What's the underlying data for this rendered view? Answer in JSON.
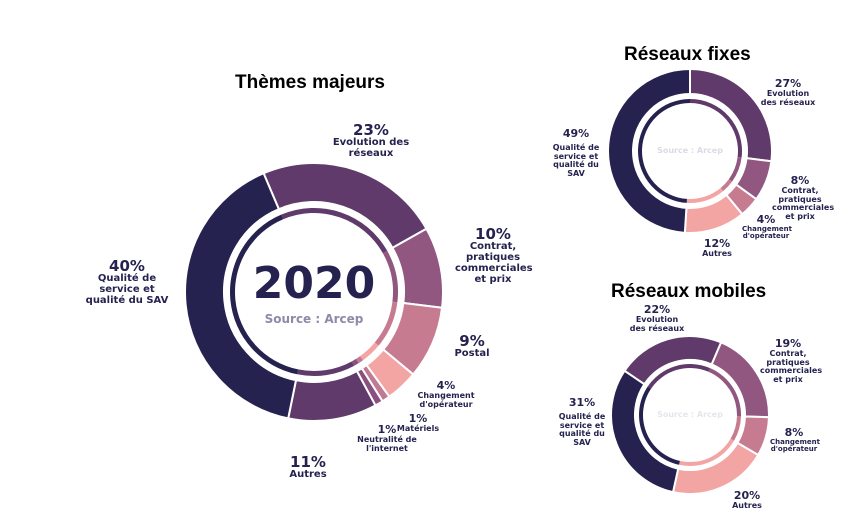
{
  "chart_data": [
    {
      "type": "pie",
      "title": "Thèmes majeurs",
      "center_title": "2020",
      "source": "Source : Arcep",
      "slices": [
        {
          "label": "Evolution des réseaux",
          "value": 23,
          "color": "#5f3a6a"
        },
        {
          "label": "Contrat, pratiques commerciales et prix",
          "value": 10,
          "color": "#915780"
        },
        {
          "label": "Postal",
          "value": 9,
          "color": "#c77b91"
        },
        {
          "label": "Changement d'opérateur",
          "value": 4,
          "color": "#f3a5a3"
        },
        {
          "label": "Matériels",
          "value": 1,
          "color": "#c07a94"
        },
        {
          "label": "Neutralité de l'internet",
          "value": 1,
          "color": "#8a5080"
        },
        {
          "label": "Autres",
          "value": 11,
          "color": "#5f3a6a"
        },
        {
          "label": "Qualité de service et qualité du SAV",
          "value": 40,
          "color": "#25224f"
        }
      ]
    },
    {
      "type": "pie",
      "title": "Réseaux fixes",
      "source": "Source : Arcep",
      "slices": [
        {
          "label": "Evolution des réseaux",
          "value": 27,
          "color": "#5f3a6a"
        },
        {
          "label": "Contrat, pratiques commerciales et prix",
          "value": 8,
          "color": "#915780"
        },
        {
          "label": "Changement d'opérateur",
          "value": 4,
          "color": "#c77b91"
        },
        {
          "label": "Autres",
          "value": 12,
          "color": "#f3a5a3"
        },
        {
          "label": "Qualité de service et qualité du SAV",
          "value": 49,
          "color": "#25224f"
        }
      ]
    },
    {
      "type": "pie",
      "title": "Réseaux mobiles",
      "source": "Source : Arcep",
      "slices": [
        {
          "label": "Evolution des réseaux",
          "value": 22,
          "color": "#5f3a6a"
        },
        {
          "label": "Contrat, pratiques commerciales et prix",
          "value": 19,
          "color": "#915780"
        },
        {
          "label": "Changement d'opérateur",
          "value": 8,
          "color": "#c77b91"
        },
        {
          "label": "Autres",
          "value": 20,
          "color": "#f3a5a3"
        },
        {
          "label": "Qualité de service et qualité du SAV",
          "value": 31,
          "color": "#25224f"
        }
      ]
    }
  ],
  "pct": {
    "p23": "23%",
    "p10": "10%",
    "p9": "9%",
    "p4": "4%",
    "p1": "1%",
    "p11": "11%",
    "p40": "40%",
    "p27": "27%",
    "p8": "8%",
    "p12": "12%",
    "p49": "49%",
    "p22": "22%",
    "p19": "19%",
    "p20": "20%",
    "p31": "31%"
  }
}
